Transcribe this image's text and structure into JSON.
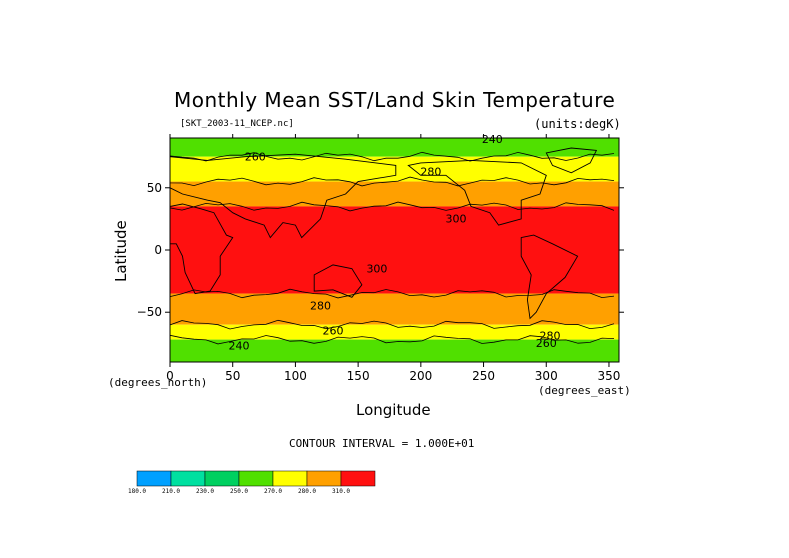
{
  "chart_data": {
    "type": "heatmap",
    "title": "Monthly Mean SST/Land Skin Temperature",
    "subtitle_left": "[SKT_2003-11_NCEP.nc]",
    "subtitle_right": "(units:degK)",
    "xlabel": "Longitude",
    "ylabel": "Latitude",
    "x_units_label": "(degrees_east)",
    "y_units_label": "(degrees_north)",
    "xlim": [
      0,
      358
    ],
    "ylim": [
      -90,
      90
    ],
    "x_ticks": [
      0,
      50,
      100,
      150,
      200,
      250,
      300,
      350
    ],
    "y_ticks": [
      50,
      0,
      -50
    ],
    "y_tick_labels": [
      "50",
      "0",
      "−50"
    ],
    "contour_interval_text": "CONTOUR INTERVAL = 1.000E+01",
    "contour_labels": [
      "240",
      "260",
      "280",
      "300",
      "300",
      "280",
      "260",
      "240",
      "260",
      "280"
    ],
    "colorbar": {
      "labels": [
        "180.0",
        "210.0",
        "230.0",
        "250.0",
        "270.0",
        "280.0",
        "310.0"
      ],
      "colors": [
        "#00a0ff",
        "#00e0a0",
        "#00d060",
        "#50e000",
        "#ffff00",
        "#ffa000",
        "#ff1010"
      ]
    },
    "bands": [
      {
        "lat_from": 90,
        "lat_to": 75,
        "value_k": 250,
        "color": "#50e000"
      },
      {
        "lat_from": 75,
        "lat_to": 55,
        "value_k": 265,
        "color": "#ffff00"
      },
      {
        "lat_from": 55,
        "lat_to": 35,
        "value_k": 285,
        "color": "#ffa000"
      },
      {
        "lat_from": 35,
        "lat_to": -35,
        "value_k": 300,
        "color": "#ff1010"
      },
      {
        "lat_from": -35,
        "lat_to": -60,
        "value_k": 285,
        "color": "#ffa000"
      },
      {
        "lat_from": -60,
        "lat_to": -72,
        "value_k": 265,
        "color": "#ffff00"
      },
      {
        "lat_from": -72,
        "lat_to": -90,
        "value_k": 250,
        "color": "#50e000"
      }
    ]
  }
}
